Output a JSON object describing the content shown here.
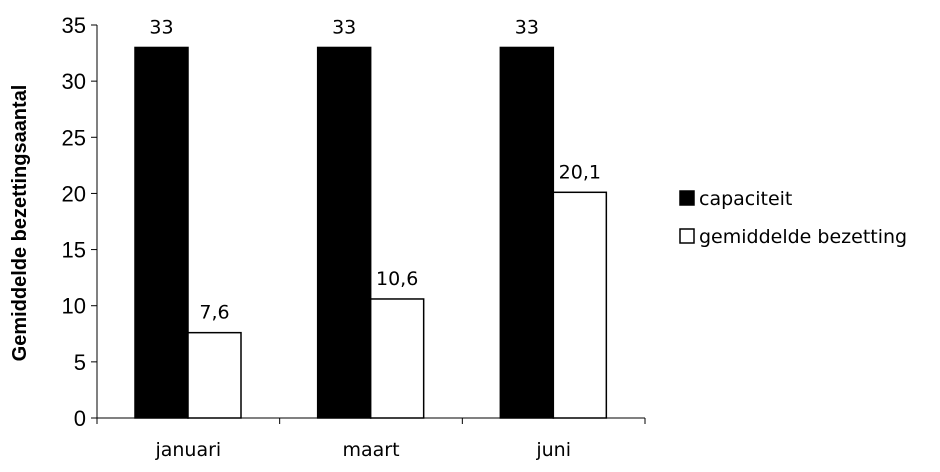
{
  "chart_data": {
    "type": "bar",
    "title": "",
    "xlabel": "",
    "ylabel": "Gemiddelde bezettingsaantal",
    "categories": [
      "januari",
      "maart",
      "juni"
    ],
    "series": [
      {
        "name": "capaciteit",
        "values": [
          33,
          33,
          33
        ],
        "labels": [
          "33",
          "33",
          "33"
        ],
        "color": "#000000"
      },
      {
        "name": "gemiddelde bezetting",
        "values": [
          7.6,
          10.6,
          20.1
        ],
        "labels": [
          "7,6",
          "10,6",
          "20,1"
        ],
        "color": "#ffffff"
      }
    ],
    "ylim": [
      0,
      35
    ],
    "yticks": [
      0,
      5,
      10,
      15,
      20,
      25,
      30,
      35
    ],
    "grid": false,
    "legend_position": "right"
  }
}
